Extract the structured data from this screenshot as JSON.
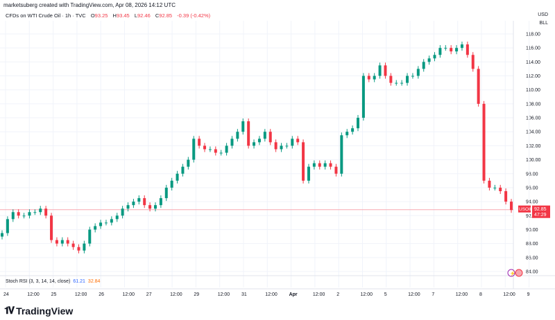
{
  "header": {
    "author_line": "marketsuberg created with TradingView.com, Apr 08, 2026 14:12 UTC"
  },
  "legend": {
    "symbol": "CFDs on WTI Crude Oil · 1h · TVC",
    "o_label": "O",
    "o": "93.25",
    "h_label": "H",
    "h": "93.45",
    "l_label": "L",
    "l": "92.46",
    "c_label": "C",
    "c": "92.85",
    "change": "-0.39 (-0.42%)"
  },
  "currency": {
    "unit": "USD",
    "sub": "BLL"
  },
  "price_tag": {
    "symbol": "USOIL",
    "price": "92.85",
    "countdown": "47:29"
  },
  "stoch": {
    "label": "Stoch RSI (3, 3, 14, 14, close)",
    "k": "61.21",
    "d": "32.84"
  },
  "brand": "TradingView",
  "colors": {
    "up": "#089981",
    "down": "#f23645",
    "grid": "#f0f3fa",
    "price_line": "#f7a8b0",
    "stoch_k": "#2962ff",
    "stoch_d": "#ff6d00"
  },
  "icons": [
    "lightning-event-icon",
    "us-flag-icon"
  ],
  "chart_data": {
    "type": "candlestick",
    "y_ticks": [
      "118.00",
      "116.00",
      "114.00",
      "112.00",
      "110.00",
      "108.00",
      "106.00",
      "104.00",
      "102.00",
      "100.00",
      "98.00",
      "96.00",
      "94.00",
      "92.00",
      "90.00",
      "88.00",
      "86.00",
      "84.00"
    ],
    "ylim": [
      84,
      118
    ],
    "x_ticks": [
      "24",
      "12:00",
      "25",
      "12:00",
      "26",
      "12:00",
      "27",
      "12:00",
      "29",
      "12:00",
      "31",
      "12:00",
      "Apr",
      "12:00",
      "2",
      "12:00",
      "5",
      "12:00",
      "7",
      "12:00",
      "8",
      "12:00",
      "9"
    ],
    "last_price": 92.85,
    "closes": [
      89.5,
      91.5,
      92.5,
      92,
      92,
      92.5,
      92.5,
      93,
      92,
      88.5,
      88,
      88.5,
      88,
      87.5,
      87,
      88,
      90,
      90.5,
      91,
      91,
      91.5,
      92,
      93,
      93.5,
      94,
      94.5,
      93.5,
      93,
      93.5,
      94.5,
      96,
      97,
      98,
      99,
      100,
      103,
      102,
      101.5,
      101.5,
      101,
      101,
      102,
      103,
      104,
      105.5,
      102,
      102.5,
      103,
      104,
      102.5,
      101.5,
      102,
      102,
      103,
      102.5,
      97,
      99,
      99.5,
      99,
      99.5,
      99,
      98,
      103.5,
      104,
      104.5,
      106,
      112,
      111.5,
      112,
      113.5,
      112,
      111,
      111,
      111,
      112,
      112,
      113,
      114,
      114.5,
      115,
      116,
      116,
      115.5,
      116,
      116.5,
      115,
      113,
      108,
      97,
      96,
      96,
      95.5,
      94,
      92.8
    ]
  }
}
